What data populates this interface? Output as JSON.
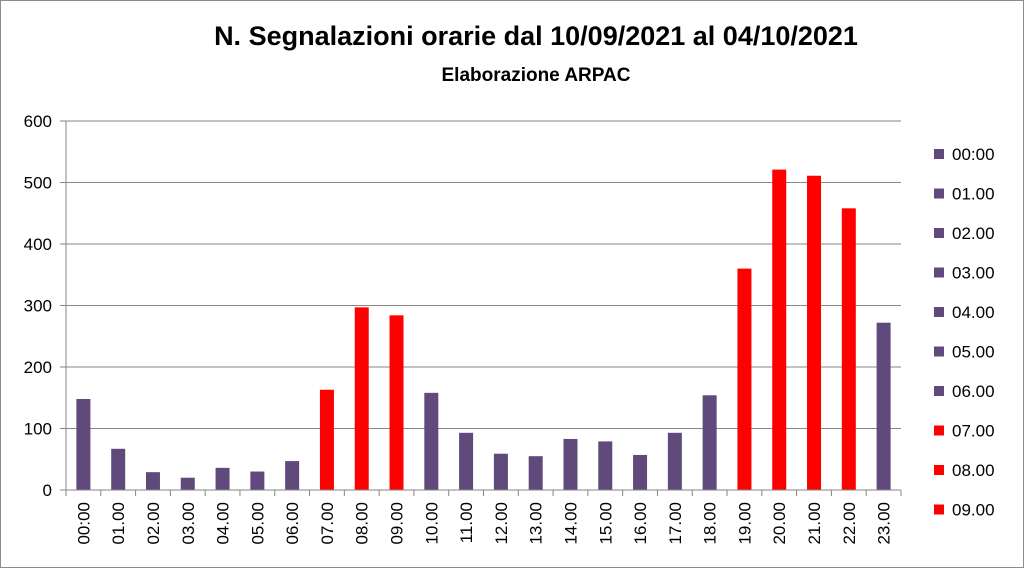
{
  "chart_data": {
    "type": "bar",
    "title": "N. Segnalazioni orarie dal 10/09/2021 al 04/10/2021",
    "subtitle": "Elaborazione ARPAC",
    "xlabel": "",
    "ylabel": "",
    "ylim": [
      0,
      600
    ],
    "yticks": [
      0,
      100,
      200,
      300,
      400,
      500,
      600
    ],
    "grid": true,
    "legend_position": "right",
    "categories": [
      "00:00",
      "01.00",
      "02.00",
      "03.00",
      "04.00",
      "05.00",
      "06.00",
      "07.00",
      "08.00",
      "09.00",
      "10.00",
      "11.00",
      "12.00",
      "13.00",
      "14.00",
      "15.00",
      "16.00",
      "17.00",
      "18.00",
      "19.00",
      "20.00",
      "21.00",
      "22.00",
      "23.00"
    ],
    "values": [
      148,
      67,
      29,
      20,
      36,
      30,
      47,
      163,
      297,
      284,
      158,
      93,
      59,
      55,
      83,
      79,
      57,
      93,
      154,
      360,
      521,
      511,
      458,
      272
    ],
    "highlighted": [
      false,
      false,
      false,
      false,
      false,
      false,
      false,
      true,
      true,
      true,
      false,
      false,
      false,
      false,
      false,
      false,
      false,
      false,
      false,
      true,
      true,
      true,
      true,
      false
    ],
    "colors": {
      "normal": "#604a7b",
      "highlight": "#ff0000"
    },
    "legend": [
      {
        "label": "00:00",
        "color": "#604a7b"
      },
      {
        "label": "01.00",
        "color": "#604a7b"
      },
      {
        "label": "02.00",
        "color": "#604a7b"
      },
      {
        "label": "03.00",
        "color": "#604a7b"
      },
      {
        "label": "04.00",
        "color": "#604a7b"
      },
      {
        "label": "05.00",
        "color": "#604a7b"
      },
      {
        "label": "06.00",
        "color": "#604a7b"
      },
      {
        "label": "07.00",
        "color": "#ff0000"
      },
      {
        "label": "08.00",
        "color": "#ff0000"
      },
      {
        "label": "09.00",
        "color": "#ff0000"
      }
    ]
  }
}
